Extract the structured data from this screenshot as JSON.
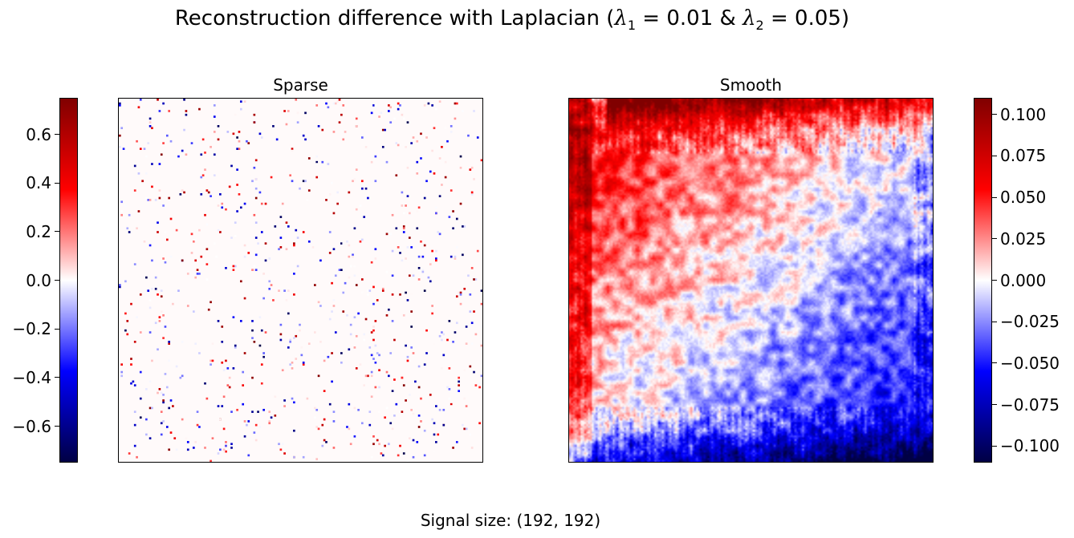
{
  "figure": {
    "title_prefix": "Reconstruction difference with Laplacian (",
    "lambda1_symbol": "λ",
    "lambda1_sub": "1",
    "lambda1_eq": " = 0.01 & ",
    "lambda2_symbol": "λ",
    "lambda2_sub": "2",
    "lambda2_eq": " = 0.05)",
    "footer": "Signal size: (192, 192)"
  },
  "chart_data": [
    {
      "type": "heatmap",
      "title": "Sparse",
      "grid_size": [
        192,
        192
      ],
      "colormap": "seismic",
      "clim": [
        -0.75,
        0.75
      ],
      "colorbar_ticks": [
        "0.6",
        "0.4",
        "0.2",
        "0.0",
        "−0.2",
        "−0.4",
        "−0.6"
      ],
      "colorbar_tick_values": [
        0.6,
        0.4,
        0.2,
        0.0,
        -0.2,
        -0.4,
        -0.6
      ],
      "colorbar_side": "left",
      "axes_ticks": false,
      "description": "mostly zero with scattered isolated positive and negative pixels"
    },
    {
      "type": "heatmap",
      "title": "Smooth",
      "grid_size": [
        192,
        192
      ],
      "colormap": "seismic",
      "clim": [
        -0.11,
        0.11
      ],
      "colorbar_ticks": [
        "0.100",
        "0.075",
        "0.050",
        "0.025",
        "0.000",
        "−0.025",
        "−0.050",
        "−0.075",
        "−0.100"
      ],
      "colorbar_tick_values": [
        0.1,
        0.075,
        0.05,
        0.025,
        0.0,
        -0.025,
        -0.05,
        -0.075,
        -0.1
      ],
      "colorbar_side": "right",
      "axes_ticks": false,
      "description": "smooth field positive toward top-left, negative toward bottom-right"
    }
  ]
}
